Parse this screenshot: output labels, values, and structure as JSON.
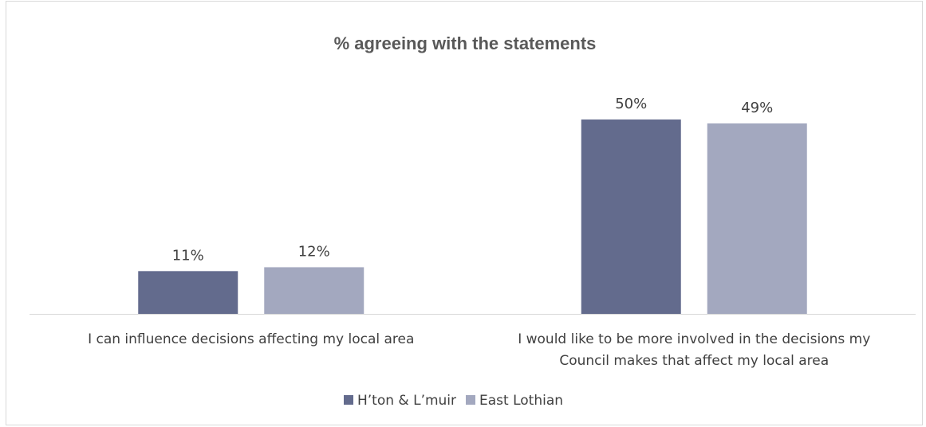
{
  "chart_data": {
    "type": "bar",
    "title": "% agreeing with the statements",
    "xlabel": "",
    "ylabel": "",
    "categories": [
      [
        "I can influence decisions affecting my local area"
      ],
      [
        "I would like to be more involved in the decisions my",
        "Council makes that affect my local area"
      ]
    ],
    "series": [
      {
        "name": "H’ton & L’muir",
        "values": [
          11,
          50
        ],
        "labels": [
          "11%",
          "50%"
        ],
        "color": "#636b8d"
      },
      {
        "name": "East Lothian",
        "values": [
          12,
          49
        ],
        "labels": [
          "12%",
          "49%"
        ],
        "color": "#a3a8bf"
      }
    ],
    "ylim": [
      0,
      60
    ],
    "grid": false,
    "legend": "bottom",
    "axis_color": "#d9d9d9"
  }
}
